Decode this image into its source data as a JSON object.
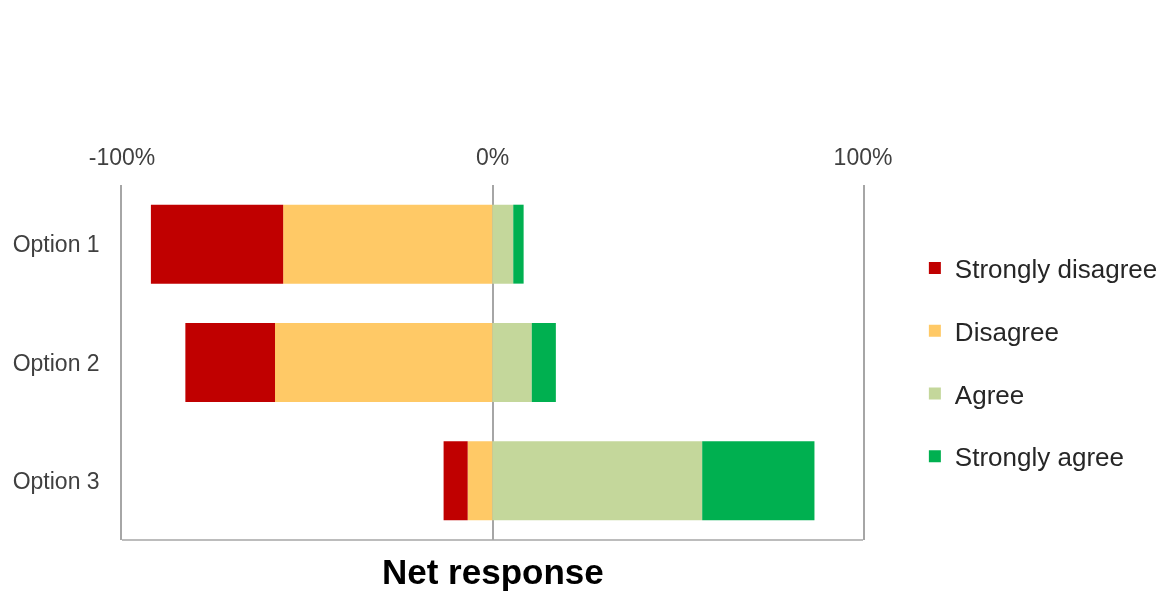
{
  "chart_data": {
    "type": "bar",
    "orientation": "horizontal",
    "stacked": true,
    "xlabel": "Net response",
    "categories": [
      "Option 1",
      "Option 2",
      "Option 3"
    ],
    "series": [
      {
        "name": "Disagree",
        "color": "#ffc966",
        "values": [
          -56.5,
          -58.7,
          -6.7
        ]
      },
      {
        "name": "Strongly disagree",
        "color": "#c00000",
        "values": [
          -35.7,
          -24.2,
          -6.5
        ]
      },
      {
        "name": "Agree",
        "color": "#c4d79b",
        "values": [
          5.6,
          10.6,
          56.6
        ]
      },
      {
        "name": "Strongly agree",
        "color": "#00b050",
        "values": [
          2.8,
          6.5,
          30.3
        ]
      }
    ],
    "xlim": [
      -100,
      100
    ],
    "xticks": [
      {
        "value": -100,
        "label": "-100%"
      },
      {
        "value": 0,
        "label": "0%"
      },
      {
        "value": 100,
        "label": "100%"
      }
    ],
    "legend": "right"
  }
}
